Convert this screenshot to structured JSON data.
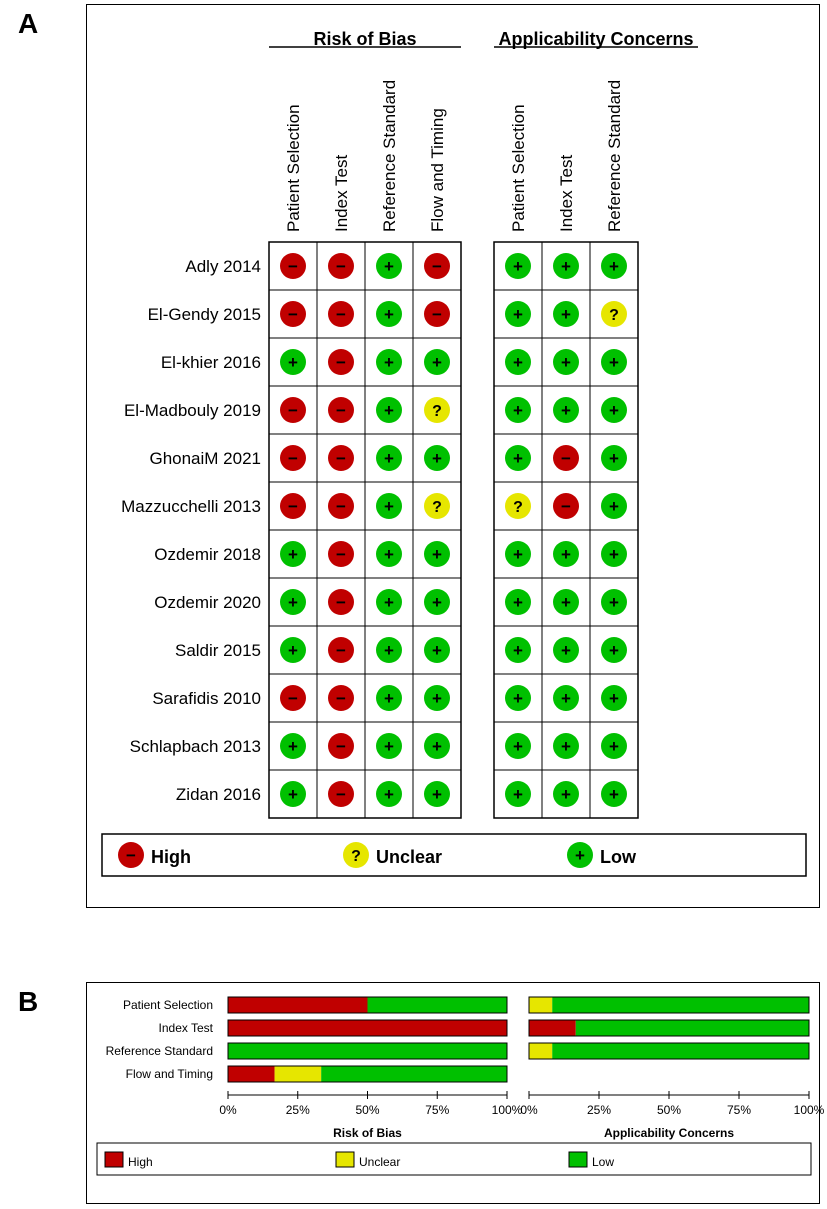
{
  "panel_a_label": "A",
  "panel_b_label": "B",
  "colors": {
    "High": "#c00000",
    "Unclear": "#e6e600",
    "Low": "#00c000"
  },
  "symbols": {
    "High": "−",
    "Unclear": "?",
    "Low": "+"
  },
  "chart_data": [
    {
      "type": "table",
      "group_headers": [
        "Risk of Bias",
        "Applicability Concerns"
      ],
      "risk_of_bias_columns": [
        "Patient Selection",
        "Index Test",
        "Reference Standard",
        "Flow and Timing"
      ],
      "applicability_columns": [
        "Patient Selection",
        "Index Test",
        "Reference Standard"
      ],
      "studies": [
        {
          "name": "Adly 2014",
          "rob": [
            "High",
            "High",
            "Low",
            "High"
          ],
          "app": [
            "Low",
            "Low",
            "Low"
          ]
        },
        {
          "name": "El-Gendy 2015",
          "rob": [
            "High",
            "High",
            "Low",
            "High"
          ],
          "app": [
            "Low",
            "Low",
            "Unclear"
          ]
        },
        {
          "name": "El-khier 2016",
          "rob": [
            "Low",
            "High",
            "Low",
            "Low"
          ],
          "app": [
            "Low",
            "Low",
            "Low"
          ]
        },
        {
          "name": "El-Madbouly 2019",
          "rob": [
            "High",
            "High",
            "Low",
            "Unclear"
          ],
          "app": [
            "Low",
            "Low",
            "Low"
          ]
        },
        {
          "name": "GhonaiM 2021",
          "rob": [
            "High",
            "High",
            "Low",
            "Low"
          ],
          "app": [
            "Low",
            "High",
            "Low"
          ]
        },
        {
          "name": "Mazzucchelli 2013",
          "rob": [
            "High",
            "High",
            "Low",
            "Unclear"
          ],
          "app": [
            "Unclear",
            "High",
            "Low"
          ]
        },
        {
          "name": "Ozdemir 2018",
          "rob": [
            "Low",
            "High",
            "Low",
            "Low"
          ],
          "app": [
            "Low",
            "Low",
            "Low"
          ]
        },
        {
          "name": "Ozdemir 2020",
          "rob": [
            "Low",
            "High",
            "Low",
            "Low"
          ],
          "app": [
            "Low",
            "Low",
            "Low"
          ]
        },
        {
          "name": "Saldir 2015",
          "rob": [
            "Low",
            "High",
            "Low",
            "Low"
          ],
          "app": [
            "Low",
            "Low",
            "Low"
          ]
        },
        {
          "name": "Sarafidis 2010",
          "rob": [
            "High",
            "High",
            "Low",
            "Low"
          ],
          "app": [
            "Low",
            "Low",
            "Low"
          ]
        },
        {
          "name": "Schlapbach 2013",
          "rob": [
            "Low",
            "High",
            "Low",
            "Low"
          ],
          "app": [
            "Low",
            "Low",
            "Low"
          ]
        },
        {
          "name": "Zidan 2016",
          "rob": [
            "Low",
            "High",
            "Low",
            "Low"
          ],
          "app": [
            "Low",
            "Low",
            "Low"
          ]
        }
      ],
      "legend": [
        "High",
        "Unclear",
        "Low"
      ]
    },
    {
      "type": "bar",
      "stacked": true,
      "orientation": "horizontal",
      "categories": [
        "Patient Selection",
        "Index Test",
        "Reference Standard",
        "Flow and Timing"
      ],
      "legend": [
        "High",
        "Unclear",
        "Low"
      ],
      "x_ticks": [
        "0%",
        "25%",
        "50%",
        "75%",
        "100%"
      ],
      "xlim": [
        0,
        100
      ],
      "panels": [
        {
          "title": "Risk of Bias",
          "series": [
            {
              "name": "High",
              "values": [
                50,
                100,
                0,
                16.7
              ]
            },
            {
              "name": "Unclear",
              "values": [
                0,
                0,
                0,
                16.7
              ]
            },
            {
              "name": "Low",
              "values": [
                50,
                0,
                100,
                66.6
              ]
            }
          ]
        },
        {
          "title": "Applicability Concerns",
          "series": [
            {
              "name": "High",
              "values": [
                0,
                16.7,
                0,
                null
              ]
            },
            {
              "name": "Unclear",
              "values": [
                8.3,
                0,
                8.3,
                null
              ]
            },
            {
              "name": "Low",
              "values": [
                91.7,
                83.3,
                91.7,
                null
              ]
            }
          ]
        }
      ]
    }
  ]
}
